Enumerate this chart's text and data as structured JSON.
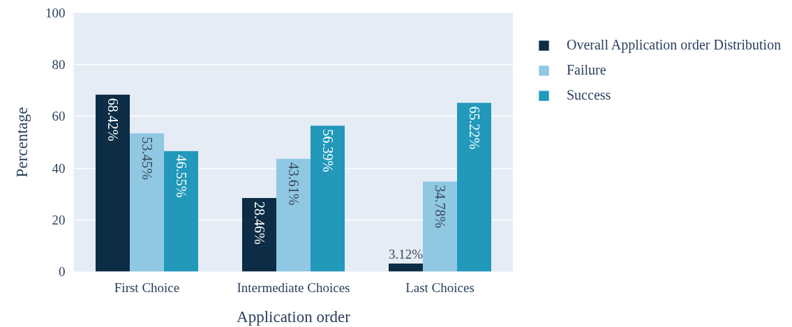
{
  "chart_data": {
    "type": "bar",
    "xlabel": "Application order",
    "ylabel": "Percentage",
    "categories": [
      "First Choice",
      "Intermediate Choices",
      "Last Choices"
    ],
    "series": [
      {
        "name": "Overall Application order Distribution",
        "color": "#0c2d45",
        "values": [
          68.42,
          28.46,
          3.12
        ],
        "value_labels": [
          "68.42%",
          "28.46%",
          "3.12%"
        ]
      },
      {
        "name": "Failure",
        "color": "#90c8e4",
        "values": [
          53.45,
          43.61,
          34.78
        ],
        "value_labels": [
          "53.45%",
          "43.61%",
          "34.78%"
        ]
      },
      {
        "name": "Success",
        "color": "#2298bb",
        "values": [
          46.55,
          56.39,
          65.22
        ],
        "value_labels": [
          "46.55%",
          "56.39%",
          "65.22%"
        ]
      }
    ],
    "ylim": [
      0,
      100
    ],
    "yticks": [
      0,
      20,
      40,
      60,
      80,
      100
    ],
    "grid": "y",
    "legend": "top right"
  }
}
